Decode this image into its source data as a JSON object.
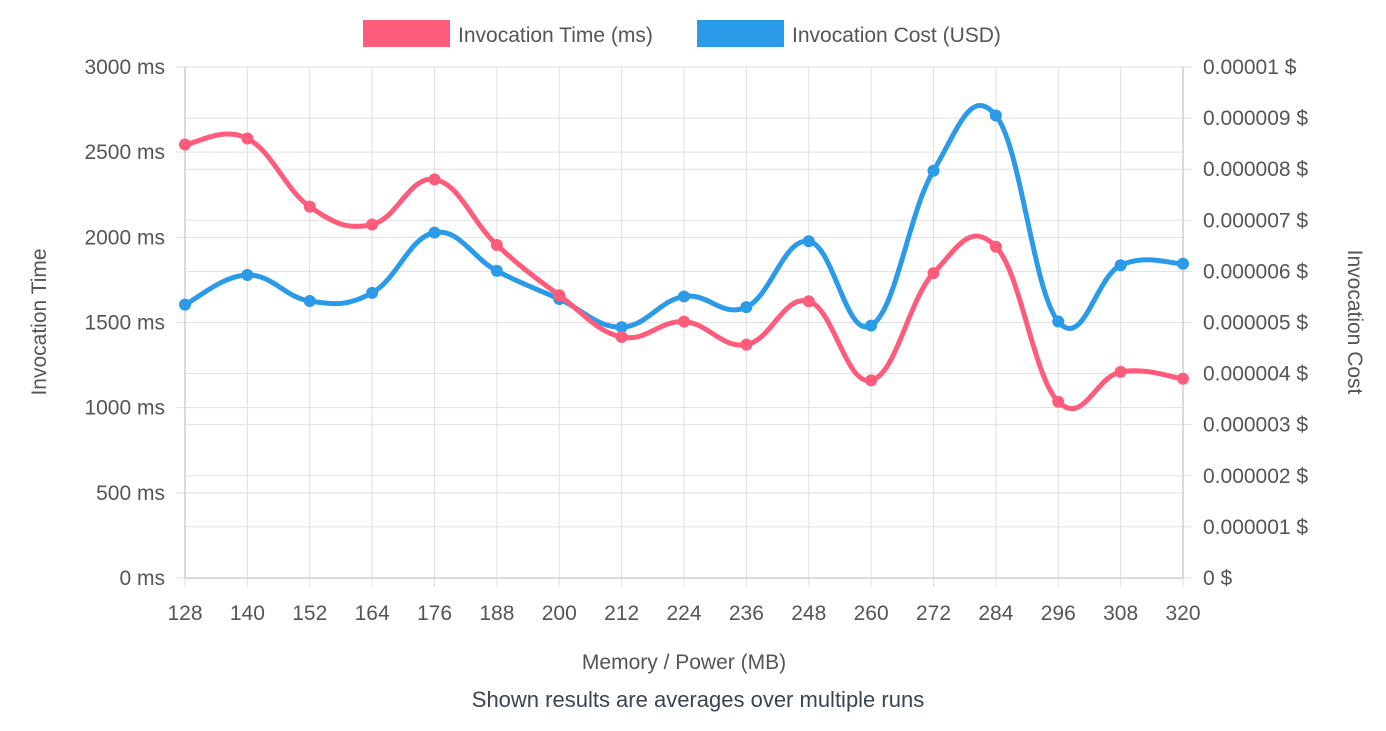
{
  "chart_data": {
    "type": "line",
    "categories": [
      "128",
      "140",
      "152",
      "164",
      "176",
      "188",
      "200",
      "212",
      "224",
      "236",
      "248",
      "260",
      "272",
      "284",
      "296",
      "308",
      "320"
    ],
    "series": [
      {
        "name": "Invocation Time (ms)",
        "axis": "left",
        "color": "#ff5c7c",
        "values": [
          2545,
          2580,
          2180,
          2075,
          2340,
          1955,
          1660,
          1415,
          1505,
          1370,
          1625,
          1160,
          1790,
          1945,
          1035,
          1210,
          1170
        ]
      },
      {
        "name": "Invocation Cost (USD)",
        "axis": "right",
        "color": "#2b9ae8",
        "values": [
          5.35e-06,
          5.93e-06,
          5.42e-06,
          5.58e-06,
          6.76e-06,
          6.01e-06,
          5.46e-06,
          4.91e-06,
          5.51e-06,
          5.3e-06,
          6.59e-06,
          4.94e-06,
          7.97e-06,
          9.05e-06,
          5.02e-06,
          6.12e-06,
          6.15e-06
        ]
      }
    ],
    "xlabel": "Memory / Power (MB)",
    "ylabel": "Invocation Time",
    "y2label": "Invocation Cost",
    "ylim": [
      0,
      3000
    ],
    "y2lim": [
      0,
      1e-05
    ],
    "yticks": [
      "0 ms",
      "500 ms",
      "1000 ms",
      "1500 ms",
      "2000 ms",
      "2500 ms",
      "3000 ms"
    ],
    "y2ticks": [
      "0 $",
      "0.000001 $",
      "0.000002 $",
      "0.000003 $",
      "0.000004 $",
      "0.000005 $",
      "0.000006 $",
      "0.000007 $",
      "0.000008 $",
      "0.000009 $",
      "0.00001 $"
    ],
    "legend_position": "top-center",
    "grid": true,
    "footnote": "Shown results are averages over multiple runs"
  }
}
